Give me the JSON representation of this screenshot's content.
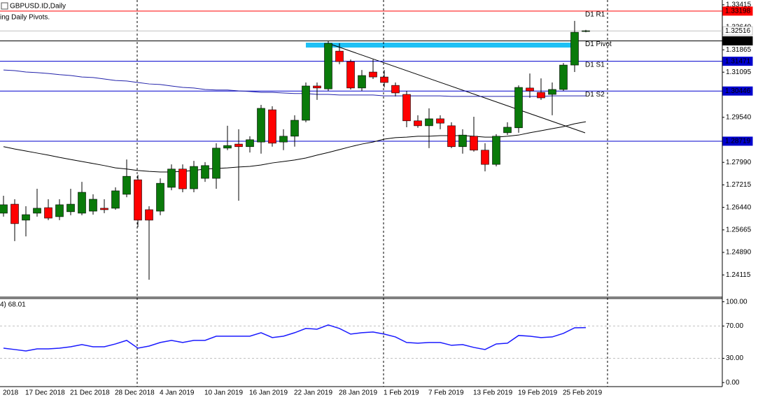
{
  "chart_data": [
    {
      "type": "candlestick",
      "title": "GBPUSD.ID,Daily",
      "subtitle": "ing Daily Pivots.",
      "categories": [
        "2018",
        null,
        "17 Dec 2018",
        null,
        null,
        null,
        "21 Dec 2018",
        null,
        null,
        null,
        "28 Dec 2018",
        null,
        null,
        null,
        "4 Jan 2019",
        null,
        null,
        null,
        "10 Jan 2019",
        null,
        null,
        null,
        "16 Jan 2019",
        null,
        null,
        null,
        "22 Jan 2019",
        null,
        null,
        null,
        "28 Jan 2019",
        null,
        null,
        null,
        "1 Feb 2019",
        null,
        null,
        null,
        "7 Feb 2019",
        null,
        null,
        null,
        "13 Feb 2019",
        null,
        null,
        null,
        "19 Feb 2019",
        null,
        null,
        null,
        "25 Feb 2019",
        null,
        null
      ],
      "open": [
        1.2624,
        1.2655,
        1.26,
        1.2624,
        1.2643,
        1.2612,
        1.2629,
        1.2624,
        1.2631,
        1.2641,
        1.2641,
        1.2689,
        1.2739,
        1.2636,
        1.2631,
        1.2713,
        1.2776,
        1.2708,
        1.2744,
        1.2744,
        1.2848,
        1.2862,
        1.2853,
        1.2869,
        1.298,
        1.2869,
        1.2889,
        1.2944,
        1.3062,
        1.3052,
        1.3182,
        1.3146,
        1.3055,
        1.311,
        1.3093,
        1.3064,
        1.3033,
        1.2942,
        1.2925,
        1.2949,
        1.2925,
        1.2853,
        1.2889,
        1.2841,
        1.2792,
        1.2901,
        1.2918,
        1.3055,
        1.304,
        1.3033,
        1.305,
        1.3134,
        1.325
      ],
      "high": [
        1.2684,
        1.2672,
        1.2648,
        1.2708,
        1.2672,
        1.2672,
        1.2708,
        1.2732,
        1.2689,
        1.2672,
        1.2713,
        1.2809,
        1.2756,
        1.2648,
        1.2744,
        1.2792,
        1.2792,
        1.2804,
        1.28,
        1.2865,
        1.2925,
        1.2913,
        1.2889,
        1.2997,
        1.2992,
        1.2913,
        1.2961,
        1.3074,
        1.3074,
        1.3218,
        1.3209,
        1.3153,
        1.3117,
        1.3153,
        1.3117,
        1.3074,
        1.3045,
        1.2961,
        1.2985,
        1.2961,
        1.2937,
        1.2913,
        1.2956,
        1.2865,
        1.2896,
        1.2937,
        1.3064,
        1.3105,
        1.3088,
        1.3074,
        1.3141,
        1.3286,
        1.3255
      ],
      "low": [
        1.2612,
        1.2528,
        1.2544,
        1.2612,
        1.26,
        1.26,
        1.2617,
        1.2617,
        1.2619,
        1.2624,
        1.2636,
        1.2679,
        1.2576,
        1.2395,
        1.2617,
        1.2703,
        1.2696,
        1.2696,
        1.2732,
        1.2708,
        1.2841,
        1.2667,
        1.2833,
        1.2829,
        1.2853,
        1.2841,
        1.2853,
        1.2937,
        1.3014,
        1.3045,
        1.3137,
        1.305,
        1.3045,
        1.3086,
        1.3057,
        1.3026,
        1.292,
        1.2918,
        1.2848,
        1.2913,
        1.2848,
        1.2829,
        1.2836,
        1.2768,
        1.2785,
        1.2893,
        1.2901,
        1.3021,
        1.3014,
        1.2961,
        1.3045,
        1.311,
        1.3247
      ],
      "close": [
        1.2653,
        1.2588,
        1.2619,
        1.2641,
        1.2607,
        1.2653,
        1.2655,
        1.2696,
        1.2672,
        1.2636,
        1.2701,
        1.2751,
        1.26,
        1.26,
        1.2727,
        1.2776,
        1.2708,
        1.2785,
        1.2788,
        1.2848,
        1.2857,
        1.2853,
        1.2877,
        1.2985,
        1.2865,
        1.2889,
        1.2944,
        1.3062,
        1.3055,
        1.3209,
        1.3146,
        1.3055,
        1.3098,
        1.3093,
        1.3074,
        1.3038,
        1.2942,
        1.2925,
        1.2949,
        1.2934,
        1.2853,
        1.2893,
        1.2841,
        1.2792,
        1.2889,
        1.292,
        1.3057,
        1.3045,
        1.3021,
        1.305,
        1.3134,
        1.3247,
        1.3252
      ],
      "up_color": "#0a7a0a",
      "down_color": "#ff0000",
      "overlays": [
        {
          "color": "#000000",
          "values": [
            1.2853,
            1.2845,
            1.2838,
            1.2831,
            1.2824,
            1.2816,
            1.2809,
            1.2802,
            1.2795,
            1.2788,
            1.278,
            1.2776,
            1.2771,
            1.2768,
            1.2766,
            1.2766,
            1.2768,
            1.2771,
            1.2776,
            1.2778,
            1.278,
            1.2783,
            1.2785,
            1.279,
            1.2797,
            1.2802,
            1.2807,
            1.2814,
            1.2824,
            1.2833,
            1.2843,
            1.2853,
            1.2862,
            1.2869,
            1.2879,
            1.2884,
            1.2886,
            1.2889,
            1.2889,
            1.2891,
            1.2891,
            1.2891,
            1.2889,
            1.2886,
            1.2886,
            1.2889,
            1.2893,
            1.2901,
            1.2908,
            1.2915,
            1.2922,
            1.2932,
            1.2939
          ]
        },
        {
          "color": "#2222aa",
          "values": [
            1.3117,
            1.3115,
            1.311,
            1.3108,
            1.3105,
            1.3101,
            1.3098,
            1.3093,
            1.3091,
            1.3086,
            1.3081,
            1.3079,
            1.3074,
            1.3069,
            1.3067,
            1.3062,
            1.3057,
            1.3055,
            1.305,
            1.3048,
            1.3048,
            1.3045,
            1.3043,
            1.304,
            1.304,
            1.3038,
            1.3036,
            1.3036,
            1.3033,
            1.3033,
            1.3031,
            1.3031,
            1.3031,
            1.3031,
            1.3028,
            1.3028,
            1.3028,
            1.3028,
            1.3028,
            1.3028,
            1.3026,
            1.3026,
            1.3026,
            1.3026,
            1.3026,
            1.3026,
            1.3026,
            1.3026,
            1.3026,
            1.3028,
            1.3028,
            1.3028,
            1.3028
          ]
        }
      ],
      "levels": [
        {
          "value": 1.33198,
          "label": "D1 R1",
          "color": "#ff0000",
          "box_color": "#ff0000",
          "text_color": "#ffffff"
        },
        {
          "value": 1.32516,
          "color": "#c0c0c0",
          "box_color": "#ffffff",
          "text_color": "#000000"
        },
        {
          "value": 1.32173,
          "label": "D1 Pivot",
          "color": "#000000",
          "box_color": "#000000",
          "text_color": "#ffffff"
        },
        {
          "value": 1.31471,
          "label": "D1 S1",
          "color": "#0000cd",
          "box_color": "#0000cd",
          "text_color": "#ffffff"
        },
        {
          "value": 1.30446,
          "label": "D1 S2",
          "color": "#0000cd",
          "box_color": "#0000cd",
          "text_color": "#ffffff"
        },
        {
          "value": 1.28719,
          "color": "#0000cd",
          "box_color": "#0000cd",
          "text_color": "#ffffff"
        }
      ],
      "ylim": [
        1.2335,
        1.3358
      ],
      "yticks": [
        1.33415,
        {
          "value": 1.3264,
          "label": "1.32640"
        },
        1.31865,
        1.31095,
        {
          "value": 1.2954,
          "label": "1.29540"
        },
        {
          "value": 1.2799,
          "label": "1.27990"
        },
        1.27215,
        {
          "value": 1.2644,
          "label": "1.26440"
        },
        1.25665,
        {
          "value": 1.2489,
          "label": "1.24890"
        },
        1.24115
      ]
    },
    {
      "type": "line",
      "label": "4) 68.01",
      "color": "#1a1aff",
      "values": [
        42.6,
        40.9,
        39.1,
        41.7,
        41.7,
        42.6,
        44.3,
        47.0,
        44.3,
        44.3,
        47.8,
        52.2,
        42.6,
        45.2,
        49.6,
        52.2,
        49.6,
        52.2,
        52.2,
        57.4,
        57.4,
        57.4,
        57.4,
        61.7,
        55.7,
        57.4,
        61.7,
        67.0,
        66.1,
        71.3,
        67.0,
        60.0,
        61.7,
        62.6,
        60.0,
        56.5,
        49.6,
        48.7,
        49.6,
        49.6,
        46.1,
        47.0,
        43.5,
        40.9,
        47.8,
        48.7,
        58.3,
        57.4,
        55.7,
        56.5,
        60.9,
        67.8,
        68.0
      ],
      "ylim": [
        -5,
        104
      ],
      "yticks": [
        {
          "value": 100,
          "label": "100.00"
        },
        {
          "value": 70,
          "label": "70.00"
        },
        {
          "value": 30,
          "label": "30.00"
        },
        {
          "value": 0,
          "label": "0.00"
        }
      ],
      "grid": true
    }
  ]
}
